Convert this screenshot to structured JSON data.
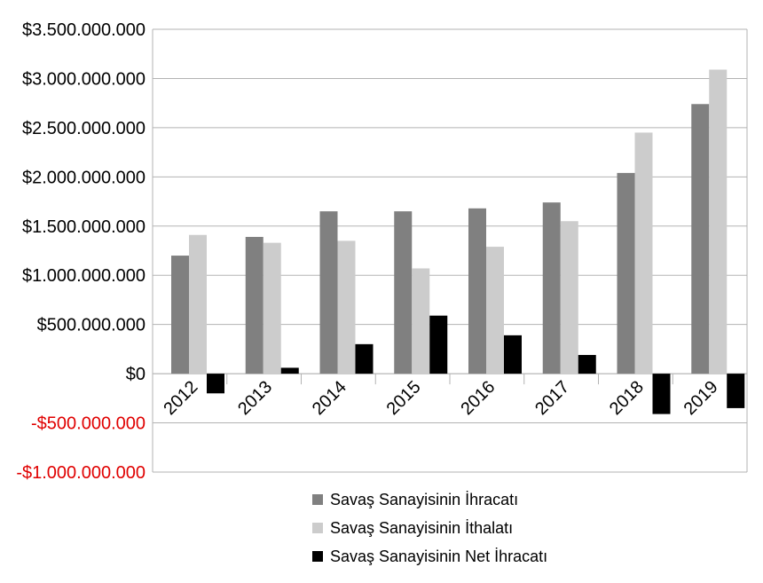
{
  "chart_data": {
    "type": "bar",
    "title": "",
    "xlabel": "",
    "ylabel": "",
    "categories": [
      "2012",
      "2013",
      "2014",
      "2015",
      "2016",
      "2017",
      "2018",
      "2019"
    ],
    "series": [
      {
        "name": "Savaş Sanayisinin İhracatı",
        "color": "#808080",
        "values": [
          1200000000,
          1390000000,
          1650000000,
          1650000000,
          1680000000,
          1740000000,
          2040000000,
          2740000000
        ]
      },
      {
        "name": "Savaş Sanayisinin İthalatı",
        "color": "#cccccc",
        "values": [
          1410000000,
          1330000000,
          1350000000,
          1070000000,
          1290000000,
          1550000000,
          2450000000,
          3090000000
        ]
      },
      {
        "name": "Savaş Sanayisinin Net İhracatı",
        "color": "#000000",
        "values": [
          -200000000,
          60000000,
          300000000,
          590000000,
          390000000,
          190000000,
          -410000000,
          -350000000
        ]
      }
    ],
    "ylim": [
      -1000000000,
      3500000000
    ],
    "ytick_step": 500000000,
    "y_tick_labels": [
      "$3.500.000.000",
      "$3.000.000.000",
      "$2.500.000.000",
      "$2.000.000.000",
      "$1.500.000.000",
      "$1.000.000.000",
      "$500.000.000",
      "$0",
      "-$500.000.000",
      "-$1.000.000.000"
    ],
    "negative_tick_color": "#e00000",
    "grid": true,
    "legend_position": "bottom"
  }
}
